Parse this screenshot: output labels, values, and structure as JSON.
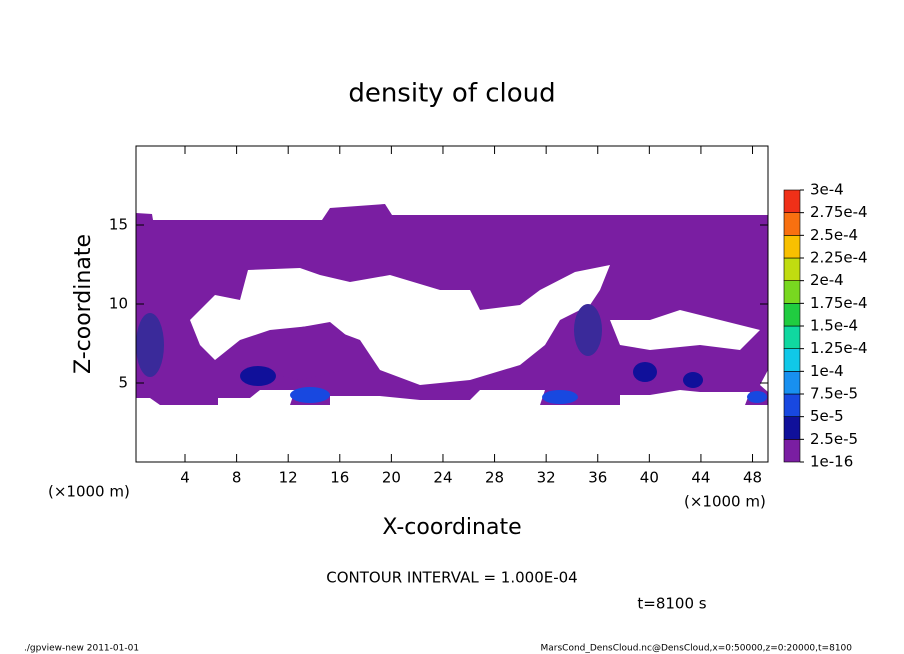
{
  "chart_data": {
    "type": "contour",
    "title": "density of cloud",
    "x_label": "X-coordinate",
    "y_label": "Z-coordinate",
    "x_unit": "(×1000 m)",
    "xlim": [
      0.2,
      49.2
    ],
    "xticks": [
      4,
      8,
      12,
      16,
      20,
      24,
      28,
      32,
      36,
      40,
      44,
      48
    ],
    "ylim": [
      0,
      20
    ],
    "yticks": [
      5,
      10,
      15
    ],
    "colorbar": {
      "ticks": [
        {
          "value": 1e-16,
          "label": "1e-16"
        },
        {
          "value": 2.5e-05,
          "label": "2.5e-5"
        },
        {
          "value": 5e-05,
          "label": "5e-5"
        },
        {
          "value": 7.5e-05,
          "label": "7.5e-5"
        },
        {
          "value": 0.0001,
          "label": "1e-4"
        },
        {
          "value": 0.000125,
          "label": "1.25e-4"
        },
        {
          "value": 0.00015,
          "label": "1.5e-4"
        },
        {
          "value": 0.000175,
          "label": "1.75e-4"
        },
        {
          "value": 0.0002,
          "label": "2e-4"
        },
        {
          "value": 0.000225,
          "label": "2.25e-4"
        },
        {
          "value": 0.00025,
          "label": "2.5e-4"
        },
        {
          "value": 0.000275,
          "label": "2.75e-4"
        },
        {
          "value": 0.0003,
          "label": "3e-4"
        }
      ],
      "colors": [
        "#7a1ea2",
        "#10109a",
        "#1848e0",
        "#1890f0",
        "#10c8e8",
        "#10d8a0",
        "#20cc40",
        "#78d820",
        "#c0dc10",
        "#f8c000",
        "#f87010",
        "#f03018"
      ]
    },
    "annotation": "CONTOUR INTERVAL = 1.000E-04",
    "time_label": "t=8100 s",
    "footer_left": "./gpview-new  2011-01-01",
    "footer_right": "MarsCond_DensCloud.nc@DensCloud,x=0:50000,z=0:20000,t=8100"
  }
}
